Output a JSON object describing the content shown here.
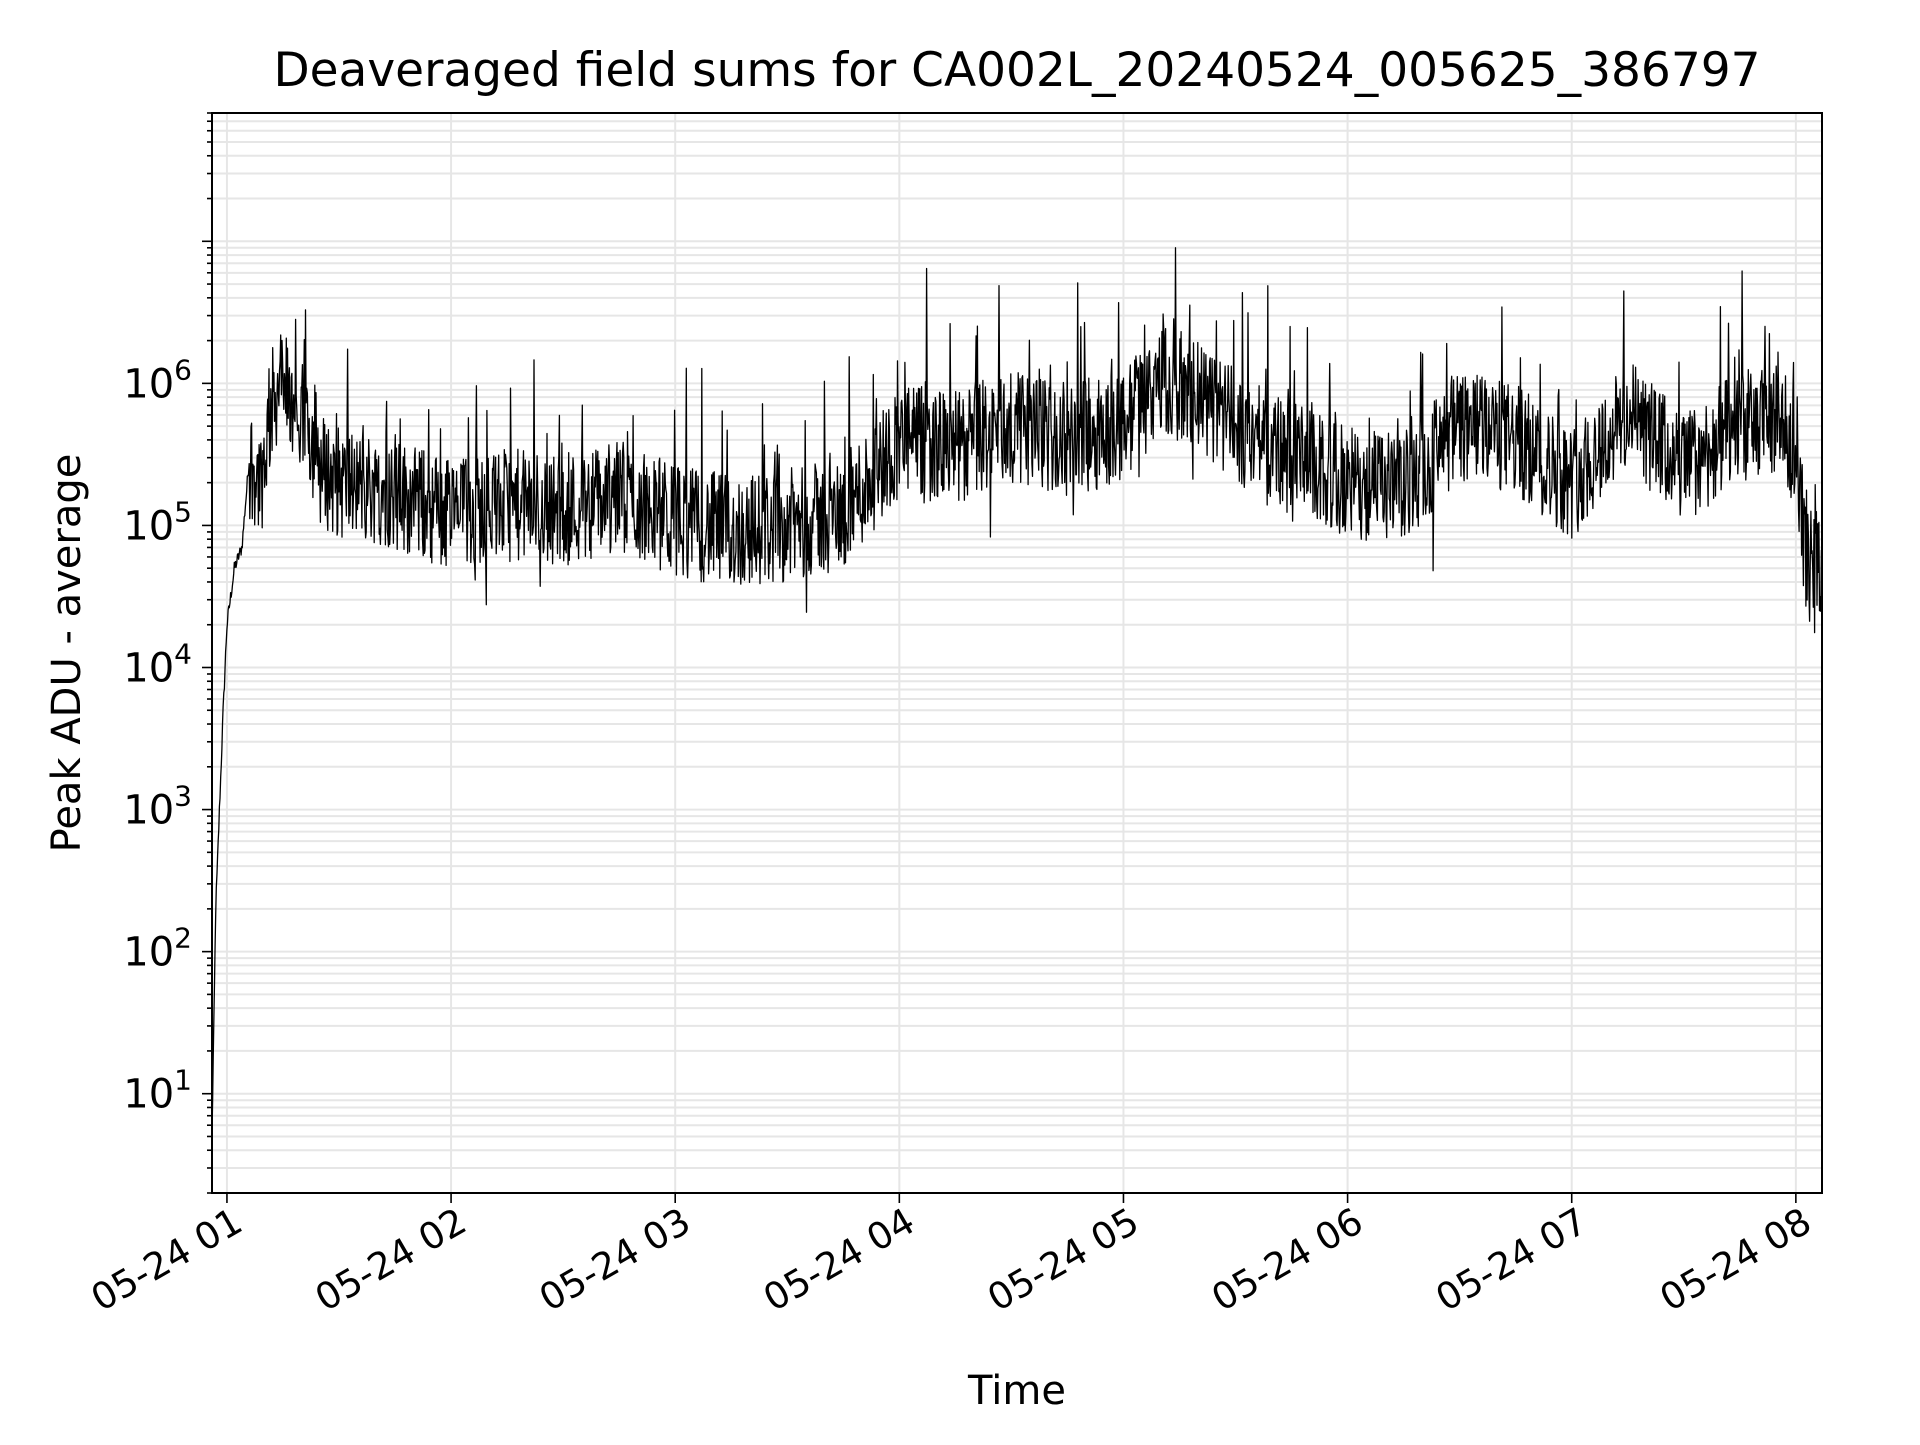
{
  "chart_data": {
    "type": "line",
    "title": "Deaveraged field sums for CA002L_20240524_005625_386797",
    "xlabel": "Time",
    "ylabel": "Peak ADU - average",
    "y_scale": "log",
    "ylim": [
      2,
      80000000
    ],
    "xlim": [
      "05-24 00:56",
      "05-24 08:07"
    ],
    "grid": true,
    "legend": "none",
    "line_color": "#000000",
    "grid_color": "#e6e6e6",
    "x_ticks": [
      "05-24 01",
      "05-24 02",
      "05-24 03",
      "05-24 04",
      "05-24 05",
      "05-24 06",
      "05-24 07",
      "05-24 08"
    ],
    "y_ticks": [
      {
        "base": "10",
        "exp": "1",
        "value": 10
      },
      {
        "base": "10",
        "exp": "2",
        "value": 100
      },
      {
        "base": "10",
        "exp": "3",
        "value": 1000
      },
      {
        "base": "10",
        "exp": "4",
        "value": 10000
      },
      {
        "base": "10",
        "exp": "5",
        "value": 100000
      },
      {
        "base": "10",
        "exp": "6",
        "value": 1000000
      }
    ],
    "series": [
      {
        "x": [
          "05-24 00:56",
          "05-24 00:57",
          "05-24 00:58",
          "05-24 00:59",
          "05-24 01:00",
          "05-24 01:02",
          "05-24 01:04",
          "05-24 01:06",
          "05-24 01:09",
          "05-24 01:12",
          "05-24 01:14",
          "05-24 01:16",
          "05-24 01:18",
          "05-24 01:21",
          "05-24 01:25",
          "05-24 01:30",
          "05-24 01:40",
          "05-24 01:50",
          "05-24 02:00",
          "05-24 02:15",
          "05-24 02:30",
          "05-24 02:45",
          "05-24 03:00",
          "05-24 03:15",
          "05-24 03:30",
          "05-24 03:45",
          "05-24 04:00",
          "05-24 04:15",
          "05-24 04:30",
          "05-24 04:45",
          "05-24 05:00",
          "05-24 05:10",
          "05-24 05:20",
          "05-24 05:30",
          "05-24 05:45",
          "05-24 06:00",
          "05-24 06:15",
          "05-24 06:30",
          "05-24 06:45",
          "05-24 07:00",
          "05-24 07:15",
          "05-24 07:30",
          "05-24 07:45",
          "05-24 07:55",
          "05-24 08:00",
          "05-24 08:03",
          "05-24 08:07"
        ],
        "y": [
          5,
          200,
          1000,
          5000,
          20000,
          50000,
          70000,
          300000,
          200000,
          700000,
          1000000,
          900000,
          450000,
          600000,
          250000,
          200000,
          180000,
          150000,
          120000,
          140000,
          130000,
          160000,
          110000,
          90000,
          100000,
          120000,
          400000,
          350000,
          500000,
          400000,
          500000,
          1100000,
          800000,
          500000,
          300000,
          200000,
          180000,
          500000,
          400000,
          200000,
          600000,
          250000,
          500000,
          550000,
          350000,
          50000,
          60000
        ]
      }
    ]
  }
}
